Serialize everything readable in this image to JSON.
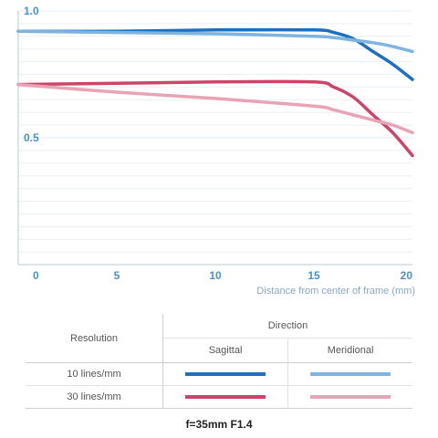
{
  "chart_data": {
    "type": "line",
    "xlabel": "Distance from center of frame (mm)",
    "xlim": [
      0,
      20
    ],
    "ylim": [
      0,
      1
    ],
    "x_ticks": [
      "0",
      "5",
      "10",
      "15",
      "20"
    ],
    "y_ticks": [
      "1.0",
      "0.5"
    ],
    "grid": "horizontal",
    "series": [
      {
        "name": "10 lines/mm Sagittal",
        "color": "#1f6fbf",
        "x": [
          0,
          5,
          10,
          15,
          16,
          17,
          18,
          19,
          20
        ],
        "y": [
          0.92,
          0.92,
          0.925,
          0.925,
          0.915,
          0.89,
          0.84,
          0.79,
          0.73
        ]
      },
      {
        "name": "10 lines/mm Meridional",
        "color": "#7fb3e0",
        "x": [
          0,
          5,
          10,
          15,
          16,
          17,
          18,
          19,
          20
        ],
        "y": [
          0.92,
          0.915,
          0.91,
          0.9,
          0.895,
          0.885,
          0.875,
          0.86,
          0.84
        ]
      },
      {
        "name": "30 lines/mm Sagittal",
        "color": "#cc4468",
        "x": [
          0,
          5,
          10,
          15,
          16,
          17,
          18,
          19,
          20
        ],
        "y": [
          0.71,
          0.715,
          0.72,
          0.72,
          0.7,
          0.66,
          0.59,
          0.52,
          0.43
        ]
      },
      {
        "name": "30 lines/mm Meridional",
        "color": "#e8a3b6",
        "x": [
          0,
          5,
          10,
          15,
          16,
          17,
          18,
          19,
          20
        ],
        "y": [
          0.71,
          0.68,
          0.655,
          0.625,
          0.61,
          0.59,
          0.57,
          0.55,
          0.52
        ]
      }
    ]
  },
  "legend": {
    "resolution_header": "Resolution",
    "direction_header": "Direction",
    "sagittal_label": "Sagittal",
    "meridional_label": "Meridional",
    "rows": [
      {
        "label": "10 lines/mm",
        "sagittal_color": "#1f6fbf",
        "meridional_color": "#7fb3e0"
      },
      {
        "label": "30 lines/mm",
        "sagittal_color": "#cc4468",
        "meridional_color": "#e8a3b6"
      }
    ]
  },
  "caption": "f=35mm F1.4"
}
